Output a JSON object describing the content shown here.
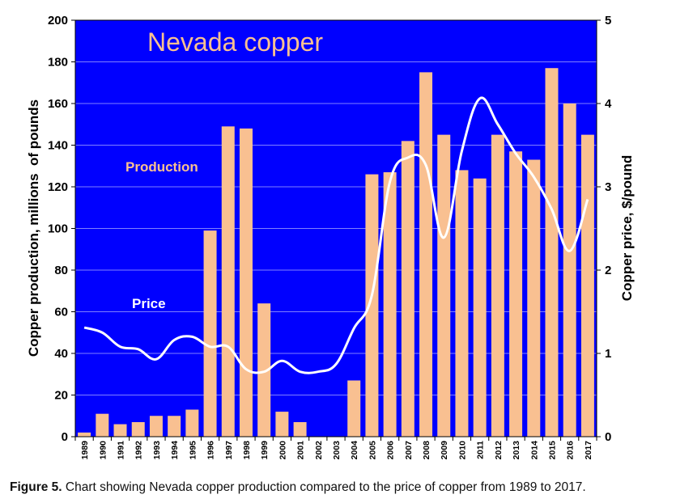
{
  "chart_data": {
    "type": "bar",
    "title": "Nevada copper",
    "ylabel_left": "Copper production, millions  of pounds",
    "ylabel_right": "Copper price, $/pound",
    "ylim_left": [
      0,
      200
    ],
    "ylim_right": [
      0,
      5
    ],
    "yticks_left": [
      "0",
      "20",
      "40",
      "60",
      "80",
      "100",
      "120",
      "140",
      "160",
      "180",
      "200"
    ],
    "yticks_right": [
      "0",
      "1",
      "2",
      "3",
      "4",
      "5"
    ],
    "grid": true,
    "background_color": "#0000FF",
    "categories": [
      "1989",
      "1990",
      "1991",
      "1992",
      "1993",
      "1994",
      "1995",
      "1996",
      "1997",
      "1998",
      "1999",
      "2000",
      "2001",
      "2002",
      "2003",
      "2004",
      "2005",
      "2006",
      "2007",
      "2008",
      "2009",
      "2010",
      "2011",
      "2012",
      "2013",
      "2014",
      "2015",
      "2016",
      "2017"
    ],
    "series": [
      {
        "name": "Production",
        "type": "bar",
        "axis": "left",
        "color": "#F9C091",
        "values": [
          2,
          11,
          6,
          7,
          10,
          10,
          13,
          99,
          149,
          148,
          64,
          12,
          7,
          0,
          0,
          27,
          126,
          127,
          142,
          175,
          145,
          128,
          124,
          145,
          137,
          133,
          177,
          160,
          145
        ]
      },
      {
        "name": "Price",
        "type": "line",
        "axis": "right",
        "color": "#FFFFFF",
        "values": [
          1.31,
          1.25,
          1.08,
          1.05,
          0.93,
          1.16,
          1.2,
          1.08,
          1.08,
          0.81,
          0.78,
          0.91,
          0.78,
          0.78,
          0.87,
          1.3,
          1.7,
          3.06,
          3.35,
          3.26,
          2.39,
          3.43,
          4.06,
          3.75,
          3.4,
          3.12,
          2.73,
          2.23,
          2.85
        ]
      }
    ]
  },
  "caption": {
    "label": "Figure 5.",
    "text": " Chart showing Nevada copper production compared to the price of copper from 1989 to 2017."
  }
}
